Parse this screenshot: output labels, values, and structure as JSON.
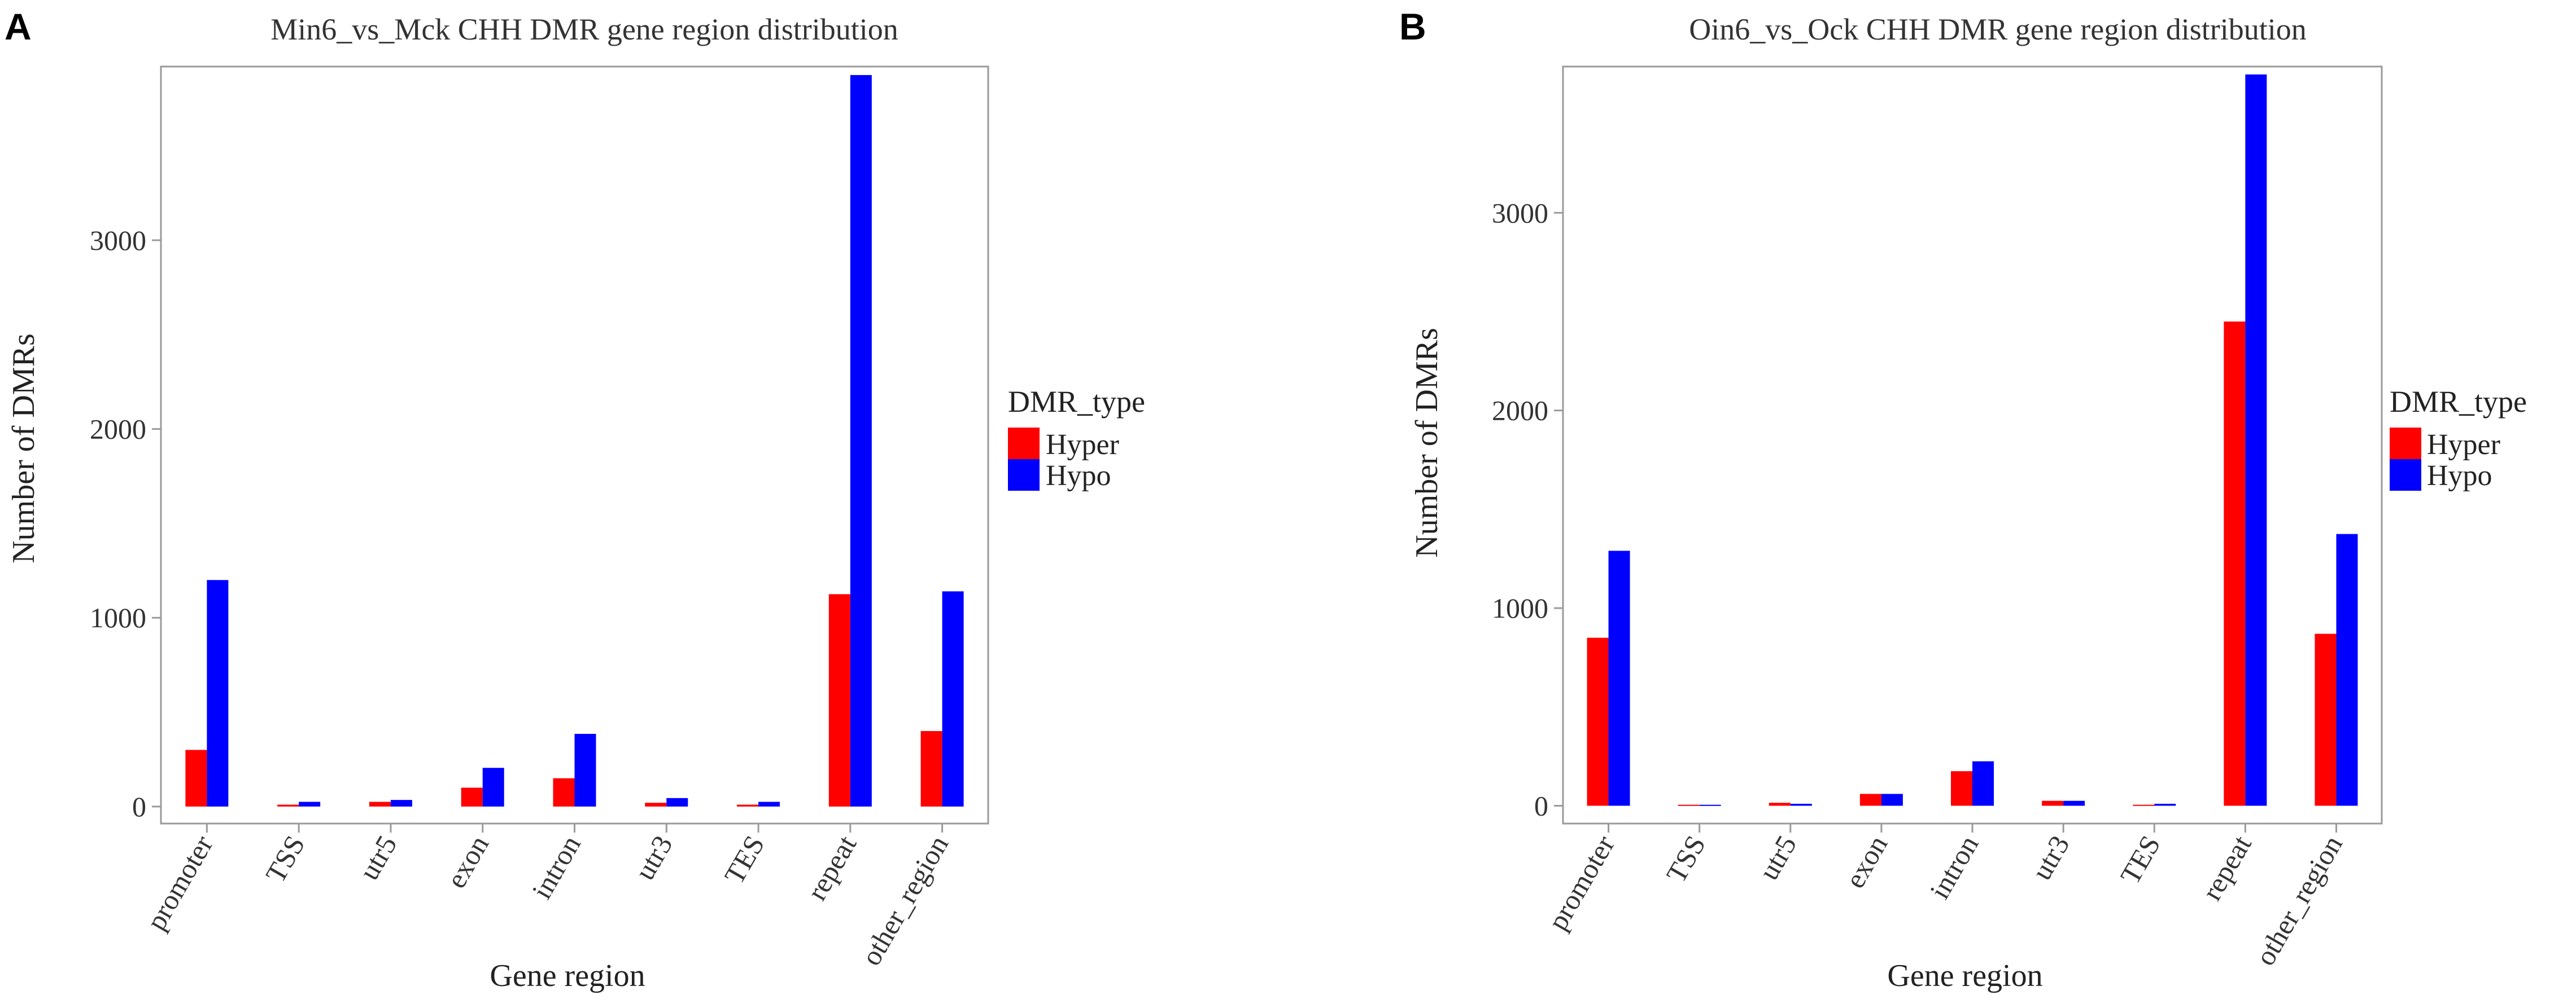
{
  "chart_data": [
    {
      "type": "bar",
      "panel": "A",
      "title": "Min6_vs_Mck CHH DMR gene region distribution",
      "xlabel": "Gene region",
      "ylabel": "Number of DMRs",
      "categories": [
        "promoter",
        "TSS",
        "utr5",
        "exon",
        "intron",
        "utr3",
        "TES",
        "repeat",
        "other_region"
      ],
      "series": [
        {
          "name": "Hyper",
          "color": "#ff0000",
          "values": [
            300,
            10,
            25,
            100,
            150,
            20,
            10,
            1125,
            400
          ]
        },
        {
          "name": "Hypo",
          "color": "#0000ff",
          "values": [
            1200,
            25,
            35,
            205,
            385,
            45,
            25,
            3875,
            1140
          ]
        }
      ],
      "yticks": [
        0,
        1000,
        2000,
        3000
      ],
      "ylim": [
        -90,
        3920
      ],
      "legend": {
        "title": "DMR_type",
        "position": "right"
      }
    },
    {
      "type": "bar",
      "panel": "B",
      "title": "Oin6_vs_Ock CHH DMR gene region distribution",
      "xlabel": "Gene region",
      "ylabel": "Number of DMRs",
      "categories": [
        "promoter",
        "TSS",
        "utr5",
        "exon",
        "intron",
        "utr3",
        "TES",
        "repeat",
        "other_region"
      ],
      "series": [
        {
          "name": "Hyper",
          "color": "#ff0000",
          "values": [
            850,
            5,
            15,
            60,
            175,
            25,
            5,
            2450,
            870
          ]
        },
        {
          "name": "Hypo",
          "color": "#0000ff",
          "values": [
            1290,
            5,
            10,
            60,
            225,
            25,
            10,
            3700,
            1375
          ]
        }
      ],
      "yticks": [
        0,
        1000,
        2000,
        3000
      ],
      "ylim": [
        -90,
        3740
      ],
      "legend": {
        "title": "DMR_type",
        "position": "right"
      }
    }
  ]
}
